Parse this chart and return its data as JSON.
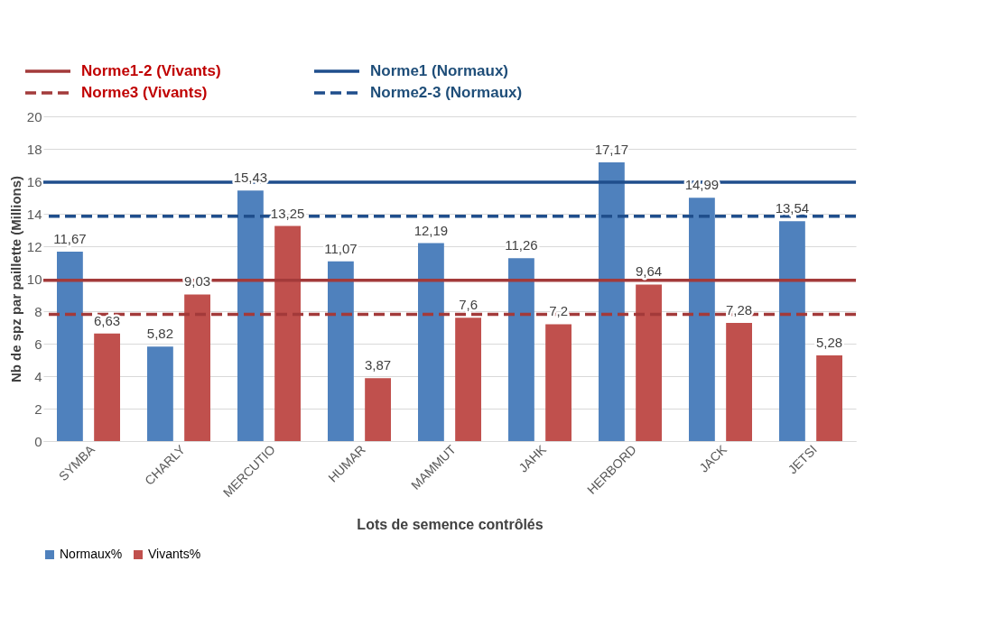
{
  "chart_data": {
    "type": "bar",
    "xlabel": "Lots de semence contrôlés",
    "ylabel": "Nb de spz par paillette (Millions)",
    "categories": [
      "SYMBA",
      "CHARLY",
      "MERCUTIO",
      "HUMAR",
      "MAMMUT",
      "JAHK",
      "HERBORD",
      "JACK",
      "JETSI"
    ],
    "series": [
      {
        "name": "Normaux%",
        "color": "#4f81bd",
        "values": [
          11.67,
          5.82,
          15.43,
          11.07,
          12.19,
          11.26,
          17.17,
          14.99,
          13.54
        ],
        "value_labels": [
          "11,67",
          "5,82",
          "15,43",
          "11,07",
          "12,19",
          "11,26",
          "17,17",
          "14,99",
          "13,54"
        ]
      },
      {
        "name": "Vivants%",
        "color": "#c0504d",
        "values": [
          6.63,
          9.03,
          13.25,
          3.87,
          7.6,
          7.2,
          9.64,
          7.28,
          5.28
        ],
        "value_labels": [
          "6,63",
          "9,03",
          "13,25",
          "3,87",
          "7,6",
          "7,2",
          "9,64",
          "7,28",
          "5,28"
        ]
      }
    ],
    "ylim": [
      0,
      20
    ],
    "yticks": [
      0,
      2,
      4,
      6,
      8,
      10,
      12,
      14,
      16,
      18,
      20
    ],
    "grid": "y",
    "legend": "bottom",
    "ref_lines": [
      {
        "axis": "y",
        "value": 9.9,
        "label": "Norme1-2 (Vivants)",
        "color": "#a33a3a",
        "line_style": "solid"
      },
      {
        "axis": "y",
        "value": 7.8,
        "label": "Norme3 (Vivants)",
        "color": "#a33a3a",
        "line_style": "dashed"
      },
      {
        "axis": "y",
        "value": 15.95,
        "label": "Norme1 (Normaux)",
        "color": "#1f4e8c",
        "line_style": "solid"
      },
      {
        "axis": "y",
        "value": 13.85,
        "label": "Norme2-3 (Normaux)",
        "color": "#1f4e8c",
        "line_style": "dashed"
      }
    ]
  }
}
